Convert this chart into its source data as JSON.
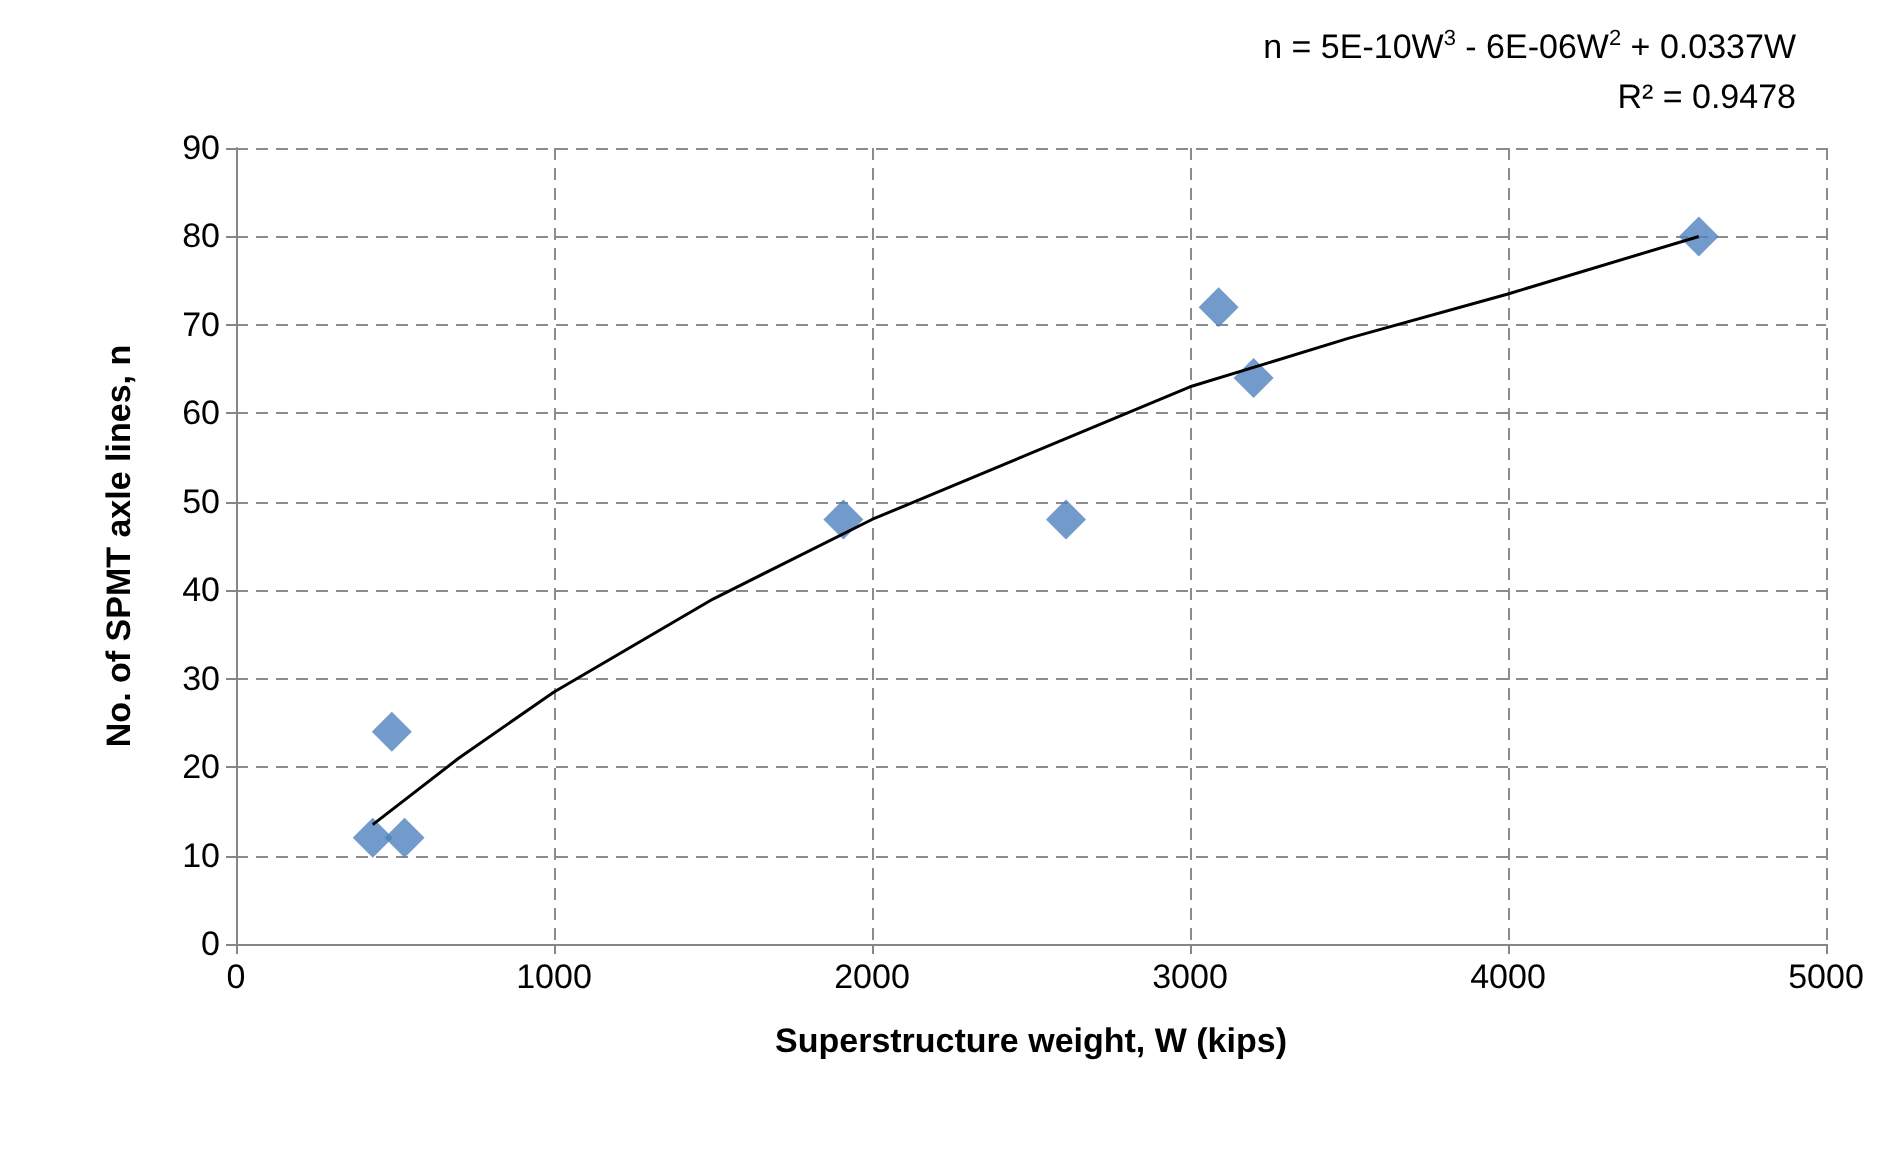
{
  "chart_data": {
    "type": "scatter",
    "xlabel": "Superstructure weight, W (kips)",
    "ylabel": "No. of SPMT axle lines, n",
    "series": [
      {
        "color": "#4f81bd",
        "marker": "diamond",
        "x": [
          430,
          490,
          530,
          1910,
          2610,
          3090,
          3200,
          4600
        ],
        "values": [
          12,
          24,
          12,
          48,
          48,
          72,
          64,
          80
        ]
      },
      {
        "type": "line",
        "color": "#000000",
        "marker": "none",
        "x": [
          430,
          700,
          1000,
          1500,
          2000,
          2500,
          3000,
          3500,
          4000,
          4600
        ],
        "values": [
          13.5,
          21,
          28.5,
          39,
          48,
          55.5,
          63,
          68.5,
          73.5,
          80
        ]
      }
    ],
    "xlim": [
      0,
      5000
    ],
    "xticks": [
      0,
      1000,
      2000,
      3000,
      4000,
      5000
    ],
    "ylim": [
      0,
      90
    ],
    "yticks": [
      0,
      10,
      20,
      30,
      40,
      50,
      60,
      70,
      80,
      90
    ],
    "grid": true,
    "annotations": [
      "n = 5E-10W$^{3}$ - 6E-06W$^{2}$ + 0.0337W",
      "R² = 0.9478"
    ]
  }
}
